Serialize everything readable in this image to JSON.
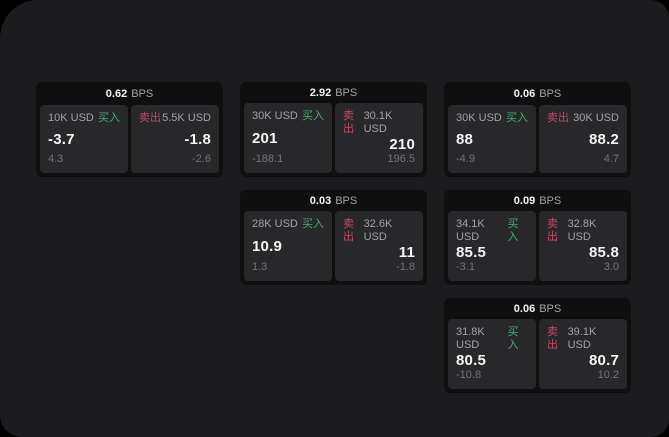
{
  "labels": {
    "bps": "BPS",
    "buy": "买入",
    "sell": "卖出"
  },
  "colors": {
    "page_background": "#000000",
    "panel_background": "#1c1c1e",
    "card_background": "#0f0f10",
    "tile_background": "#28282a",
    "buy_green": "#3fae6e",
    "sell_red": "#c74a5f",
    "text_primary": "#f5f5f5",
    "text_secondary": "#a3a3a6",
    "text_muted": "#747477"
  },
  "cards": [
    {
      "row": 1,
      "col": 1,
      "bps": "0.62",
      "buy": {
        "notional": "10K USD",
        "price": "-3.7",
        "delta": "4.3"
      },
      "sell": {
        "notional": "5.5K USD",
        "price": "-1.8",
        "delta": "-2.6"
      }
    },
    {
      "row": 1,
      "col": 2,
      "bps": "2.92",
      "buy": {
        "notional": "30K USD",
        "price": "201",
        "delta": "-188.1"
      },
      "sell": {
        "notional": "30.1K USD",
        "price": "210",
        "delta": "196.5"
      }
    },
    {
      "row": 1,
      "col": 3,
      "bps": "0.06",
      "buy": {
        "notional": "30K USD",
        "price": "88",
        "delta": "-4.9"
      },
      "sell": {
        "notional": "30K USD",
        "price": "88.2",
        "delta": "4.7"
      }
    },
    {
      "row": 2,
      "col": 2,
      "bps": "0.03",
      "buy": {
        "notional": "28K USD",
        "price": "10.9",
        "delta": "1.3"
      },
      "sell": {
        "notional": "32.6K USD",
        "price": "11",
        "delta": "-1.8"
      }
    },
    {
      "row": 2,
      "col": 3,
      "bps": "0.09",
      "buy": {
        "notional": "34.1K USD",
        "price": "85.5",
        "delta": "-3.1"
      },
      "sell": {
        "notional": "32.8K USD",
        "price": "85.8",
        "delta": "3.0"
      }
    },
    {
      "row": 3,
      "col": 3,
      "bps": "0.06",
      "buy": {
        "notional": "31.8K USD",
        "price": "80.5",
        "delta": "-10.8"
      },
      "sell": {
        "notional": "39.1K USD",
        "price": "80.7",
        "delta": "10.2"
      }
    }
  ]
}
